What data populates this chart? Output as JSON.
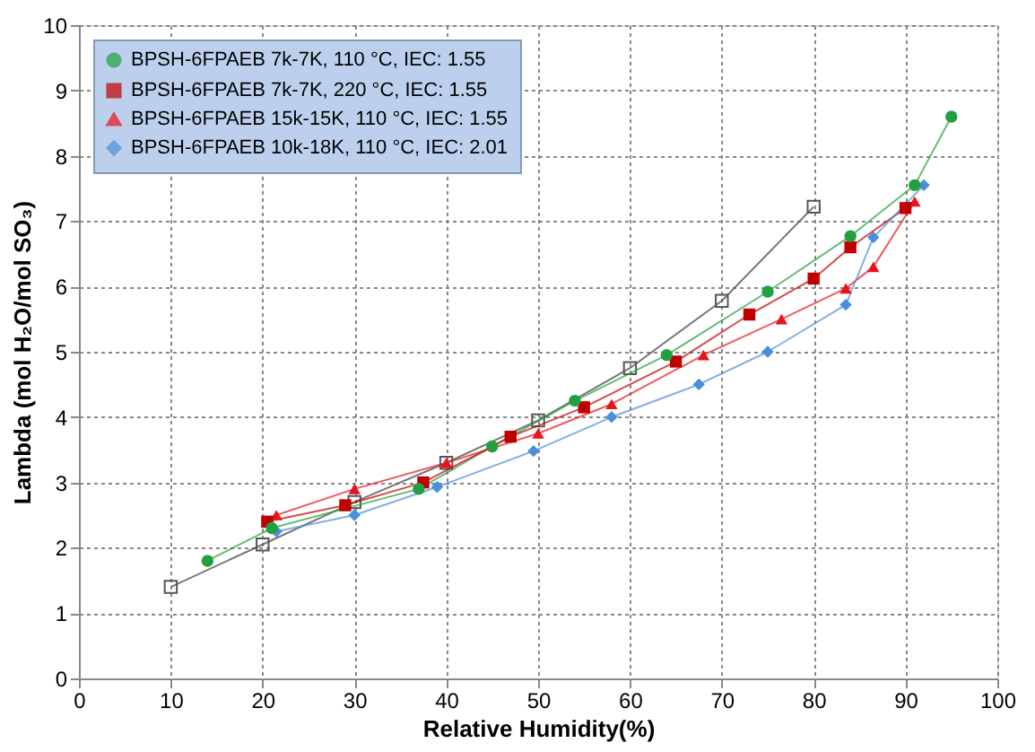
{
  "chart_data": {
    "type": "line",
    "xlabel": "Relative Humidity(%)",
    "ylabel": "Lambda (mol H₂O/mol SO₃)",
    "xlim": [
      0,
      100
    ],
    "xticks": [
      0,
      10,
      20,
      30,
      40,
      50,
      60,
      70,
      80,
      90,
      100
    ],
    "ylim": [
      0,
      10
    ],
    "yticks": [
      0,
      1,
      2,
      3,
      4,
      5,
      6,
      7,
      8,
      9,
      10
    ],
    "grid": true,
    "legend": "top left",
    "line_style": "solid",
    "series": [
      {
        "color": "#555555",
        "marker": "square",
        "x": [
          10,
          20,
          30,
          40,
          50,
          60,
          70,
          80
        ],
        "values": [
          1.4,
          2.05,
          2.7,
          3.3,
          3.95,
          4.75,
          5.78,
          7.22
        ]
      },
      {
        "name": "BPSH-6FPAEB 7k-7K, 110 °C, IEC: 1.55",
        "color": "#22a040",
        "marker": "circle",
        "x": [
          14,
          21,
          37,
          45,
          54,
          64,
          75,
          84,
          91,
          95
        ],
        "values": [
          1.8,
          2.3,
          2.9,
          3.55,
          4.25,
          4.95,
          5.92,
          6.77,
          7.55,
          8.6
        ]
      },
      {
        "name": "BPSH-6FPAEB 7k-7K, 220 °C, IEC: 1.55",
        "color": "#c00000",
        "marker": "square",
        "x": [
          20.5,
          29,
          37.5,
          47,
          55,
          65,
          73,
          80,
          84,
          90
        ],
        "values": [
          2.4,
          2.65,
          3.0,
          3.7,
          4.15,
          4.85,
          5.57,
          6.12,
          6.6,
          7.2
        ]
      },
      {
        "name": "BPSH-6FPAEB 15k-15K, 110 °C, IEC: 1.55",
        "color": "#e8141c",
        "marker": "triangle",
        "x": [
          21.5,
          30,
          40,
          50,
          58,
          68,
          76.5,
          83.5,
          86.5,
          91
        ],
        "values": [
          2.5,
          2.9,
          3.3,
          3.75,
          4.2,
          4.95,
          5.5,
          5.97,
          6.3,
          7.3
        ]
      },
      {
        "name": "BPSH-6FPAEB 10k-18K, 110 °C, IEC: 2.01",
        "color": "#4a90d9",
        "marker": "diamond",
        "x": [
          21.5,
          30,
          39,
          49.5,
          58,
          67.5,
          75,
          83.5,
          86.5,
          92
        ],
        "values": [
          2.25,
          2.5,
          2.93,
          3.48,
          4.0,
          4.5,
          5.0,
          5.72,
          6.75,
          7.55
        ]
      }
    ]
  }
}
